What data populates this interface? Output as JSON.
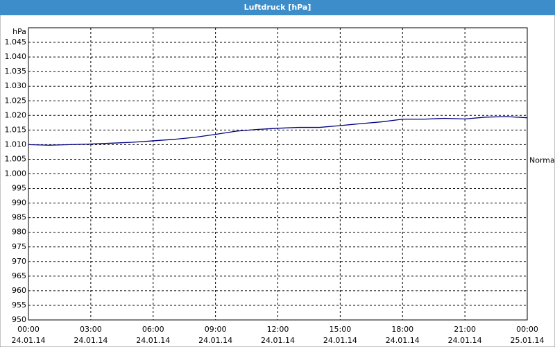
{
  "chart_data": {
    "type": "line",
    "title": "Luftdruck [hPa]",
    "y_label": "hPa",
    "x": [
      0,
      1,
      2,
      3,
      4,
      5,
      6,
      7,
      8,
      9,
      10,
      11,
      12,
      13,
      14,
      15,
      16,
      17,
      18,
      19,
      20,
      21,
      22,
      23,
      24
    ],
    "series": [
      {
        "color": "#000080",
        "values": [
          1010,
          1009.8,
          1010,
          1010.2,
          1010.5,
          1010.8,
          1011.3,
          1011.8,
          1012.5,
          1013.5,
          1014.6,
          1015.2,
          1015.6,
          1015.9,
          1015.9,
          1016.5,
          1017.2,
          1017.8,
          1018.7,
          1018.7,
          1019,
          1018.8,
          1019.4,
          1019.6,
          1019.2
        ]
      }
    ],
    "xlim": [
      0,
      24
    ],
    "xticks": [
      {
        "value": 0,
        "label": "00:00"
      },
      {
        "value": 3,
        "label": "03:00"
      },
      {
        "value": 6,
        "label": "06:00"
      },
      {
        "value": 9,
        "label": "09:00"
      },
      {
        "value": 12,
        "label": "12:00"
      },
      {
        "value": 15,
        "label": "15:00"
      },
      {
        "value": 18,
        "label": "18:00"
      },
      {
        "value": 21,
        "label": "21:00"
      },
      {
        "value": 24,
        "label": "00:00"
      }
    ],
    "xtick_dates": [
      "24.01.14",
      "24.01.14",
      "24.01.14",
      "24.01.14",
      "24.01.14",
      "24.01.14",
      "24.01.14",
      "24.01.14",
      "25.01.14"
    ],
    "ylim": [
      950,
      1050
    ],
    "yticks": [
      950,
      955,
      960,
      965,
      970,
      975,
      980,
      985,
      990,
      995,
      {
        "value": 1000,
        "label": "1.000"
      },
      {
        "value": 1005,
        "label": "1.005"
      },
      {
        "value": 1010,
        "label": "1.010"
      },
      {
        "value": 1015,
        "label": "1.015"
      },
      {
        "value": 1020,
        "label": "1.020"
      },
      {
        "value": 1025,
        "label": "1.025"
      },
      {
        "value": 1030,
        "label": "1.030"
      },
      {
        "value": 1035,
        "label": "1.035"
      },
      {
        "value": 1040,
        "label": "1.040"
      },
      {
        "value": 1045,
        "label": "1.045"
      }
    ],
    "annotation": {
      "text": "Normal",
      "y": 1004.5
    },
    "grid": true
  }
}
